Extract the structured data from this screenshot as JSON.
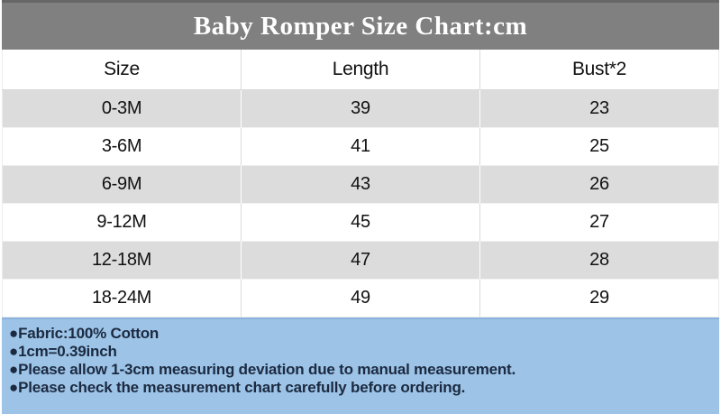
{
  "title": "Baby Romper Size Chart:cm",
  "table": {
    "headers": [
      "Size",
      "Length",
      "Bust*2"
    ],
    "rows": [
      {
        "cells": [
          "0-3M",
          "39",
          "23"
        ]
      },
      {
        "cells": [
          "3-6M",
          "41",
          "25"
        ]
      },
      {
        "cells": [
          "6-9M",
          "43",
          "26"
        ]
      },
      {
        "cells": [
          "9-12M",
          "45",
          "27"
        ]
      },
      {
        "cells": [
          "12-18M",
          "47",
          "28"
        ]
      },
      {
        "cells": [
          "18-24M",
          "49",
          "29"
        ]
      }
    ]
  },
  "notes": [
    "●Fabric:100% Cotton",
    "●1cm=0.39inch",
    "●Please allow 1-3cm measuring deviation due to manual measurement.",
    "●Please check the measurement chart carefully before ordering."
  ],
  "colors": {
    "title_bar_bg": "#808080",
    "title_text": "#ffffff",
    "shaded_row_bg": "#dcdcdc",
    "notes_bg": "#9dc3e6",
    "notes_text": "#1b2a41"
  },
  "chart_data": {
    "type": "table",
    "title": "Baby Romper Size Chart:cm",
    "units": "cm",
    "columns": [
      "Size",
      "Length",
      "Bust*2"
    ],
    "rows": [
      [
        "0-3M",
        39,
        23
      ],
      [
        "3-6M",
        41,
        25
      ],
      [
        "6-9M",
        43,
        26
      ],
      [
        "9-12M",
        45,
        27
      ],
      [
        "12-18M",
        47,
        28
      ],
      [
        "18-24M",
        49,
        29
      ]
    ]
  }
}
